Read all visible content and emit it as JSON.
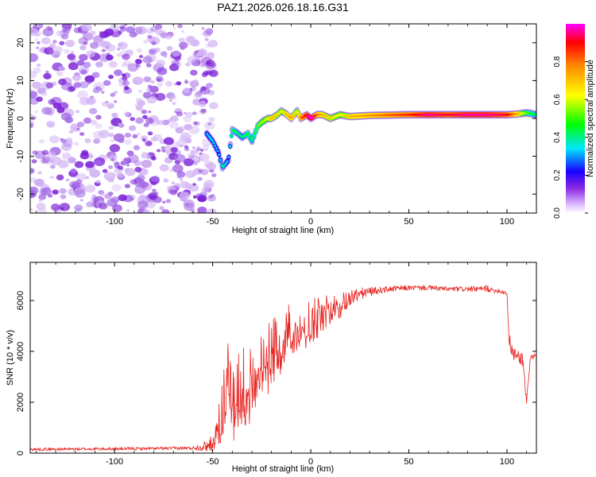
{
  "title": "PAZ1.2026.026.18.16.G31",
  "colors": {
    "snr_line": "#e8211e",
    "spectrogram_noise": "#7a1fd6",
    "frame": "#000000"
  },
  "chart_data": [
    {
      "type": "heatmap",
      "name": "spectrogram",
      "xlabel": "Height of straight line (km)",
      "ylabel": "Frequency (Hz)",
      "xlim": [
        -143,
        115
      ],
      "ylim": [
        -25,
        25
      ],
      "xticks": [
        -100,
        -50,
        0,
        50,
        100
      ],
      "yticks": [
        -20,
        -10,
        0,
        10,
        20
      ],
      "grid": false,
      "noise_region_x": [
        -143,
        -52
      ],
      "ridge": {
        "x": [
          -53,
          -50,
          -47,
          -45,
          -42,
          -40,
          -37,
          -35,
          -32,
          -30,
          -27,
          -25,
          -22,
          -20,
          -17,
          -15,
          -12,
          -10,
          -7,
          -5,
          -2,
          0,
          3,
          6,
          10,
          15,
          20,
          30,
          40,
          50,
          60,
          70,
          80,
          90,
          100,
          106,
          110,
          115
        ],
        "y": [
          -4,
          -6,
          -9,
          -13,
          -11,
          -3,
          -4,
          -5,
          -4,
          -6,
          -2,
          -1,
          0,
          0,
          1,
          2,
          1,
          0,
          2,
          0,
          1,
          0,
          1,
          1,
          0,
          1,
          0.5,
          0.8,
          0.9,
          1,
          1,
          1,
          1,
          1,
          1,
          1.2,
          1.5,
          1
        ],
        "amplitude": [
          0.2,
          0.25,
          0.2,
          0.3,
          0.2,
          0.35,
          0.3,
          0.28,
          0.35,
          0.3,
          0.4,
          0.45,
          0.5,
          0.6,
          0.55,
          0.5,
          0.6,
          0.65,
          0.5,
          0.7,
          0.8,
          0.95,
          0.7,
          0.6,
          0.55,
          0.5,
          0.6,
          0.65,
          0.7,
          0.75,
          0.85,
          0.8,
          0.85,
          0.85,
          0.8,
          0.6,
          0.4,
          0.3
        ]
      },
      "colorbar": {
        "label": "Normalized spectral amplitude",
        "range": [
          0.0,
          1.0
        ],
        "ticks": [
          0.0,
          0.2,
          0.4,
          0.6,
          0.8
        ],
        "tick_labels": [
          "0.0",
          "0.2",
          "0.4",
          "0.6",
          "0.8"
        ]
      }
    },
    {
      "type": "line",
      "name": "snr",
      "xlabel": "Height of straight line (km)",
      "ylabel": "SNR (10 * v/v)",
      "xlim": [
        -143,
        115
      ],
      "ylim": [
        0,
        7500
      ],
      "xticks": [
        -100,
        -50,
        0,
        50,
        100
      ],
      "yticks": [
        0,
        2000,
        4000,
        6000
      ],
      "grid": false,
      "series": [
        {
          "name": "SNR",
          "x": [
            -143,
            -120,
            -100,
            -80,
            -60,
            -52,
            -48,
            -45,
            -43,
            -40,
            -35,
            -30,
            -25,
            -20,
            -15,
            -10,
            -5,
            0,
            5,
            10,
            15,
            20,
            25,
            30,
            35,
            40,
            50,
            60,
            70,
            80,
            88,
            90,
            92,
            95,
            100,
            101,
            103,
            106,
            108,
            110,
            112,
            115
          ],
          "y": [
            150,
            160,
            170,
            180,
            200,
            300,
            700,
            1800,
            3500,
            2400,
            2700,
            3100,
            3600,
            4100,
            4600,
            5000,
            5100,
            5300,
            5500,
            5700,
            5900,
            6100,
            6250,
            6350,
            6400,
            6450,
            6500,
            6500,
            6450,
            6450,
            6450,
            6500,
            6400,
            6400,
            6300,
            4500,
            3900,
            3800,
            3700,
            2000,
            3800,
            3800
          ],
          "jitter": [
            60,
            60,
            60,
            60,
            70,
            250,
            600,
            1400,
            1500,
            1500,
            1500,
            1400,
            1300,
            1200,
            1100,
            1000,
            900,
            800,
            650,
            550,
            450,
            350,
            250,
            180,
            130,
            120,
            100,
            100,
            100,
            100,
            120,
            150,
            100,
            100,
            100,
            300,
            250,
            250,
            300,
            400,
            100,
            100
          ]
        }
      ]
    }
  ]
}
